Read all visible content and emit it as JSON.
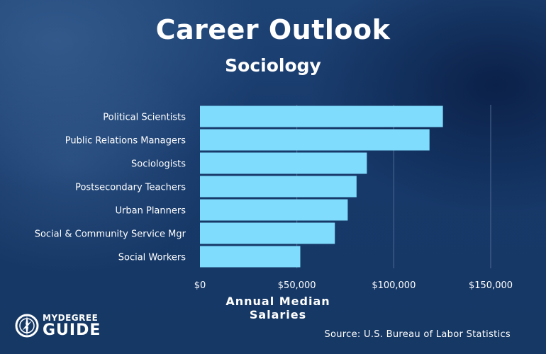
{
  "header": {
    "title": "Career Outlook",
    "subtitle": "Sociology"
  },
  "colors": {
    "bar": "#7fdcfd",
    "gridline": "#4d6b93",
    "text": "#ffffff"
  },
  "chart_data": {
    "type": "bar",
    "orientation": "horizontal",
    "categories": [
      "Political Scientists",
      "Public Relations Managers",
      "Sociologists",
      "Postsecondary Teachers",
      "Urban Planners",
      "Social & Community Service Mgr",
      "Social Workers"
    ],
    "values": [
      125350,
      118430,
      86110,
      80790,
      76240,
      69600,
      51760
    ],
    "xlabel": "Annual Median Salaries",
    "ylabel": "",
    "xlim": [
      0,
      150000
    ],
    "ticks": [
      0,
      50000,
      100000,
      150000
    ],
    "tick_labels": [
      "$0",
      "$50,000",
      "$100,000",
      "$150,000"
    ],
    "grid": true
  },
  "source": "Source: U.S. Bureau of Labor Statistics",
  "logo": {
    "line1": "MYDEGREE",
    "line2": "GUIDE",
    "icon": "compass-icon"
  }
}
